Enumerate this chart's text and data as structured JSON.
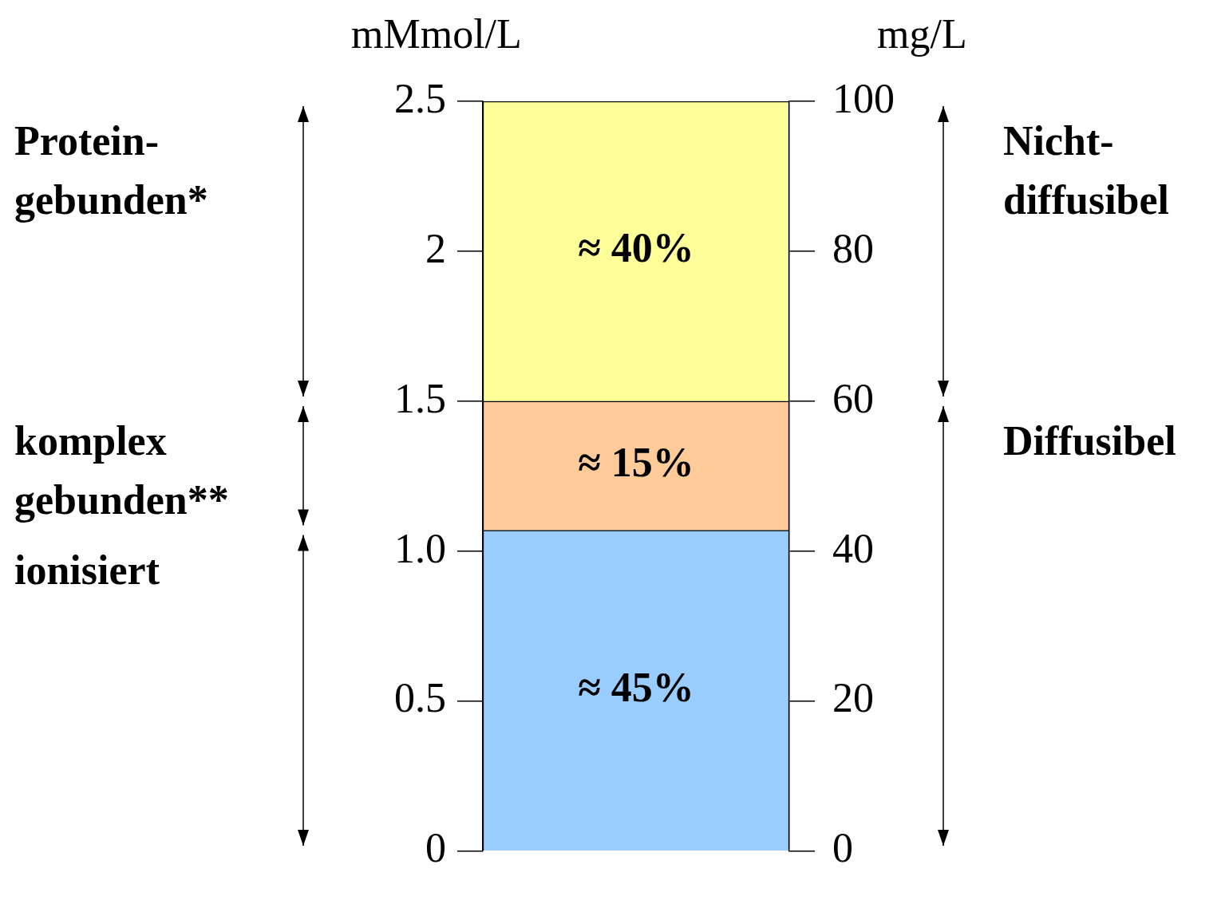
{
  "chart_data": {
    "type": "bar",
    "stacked": true,
    "ylabel": "mMmol/L",
    "y2label": "mg/L",
    "categories": [
      null
    ],
    "series": [
      {
        "color": "#99ccff",
        "values": [
          1.07
        ]
      },
      {
        "color": "#ffcc99",
        "values": [
          0.43
        ]
      },
      {
        "color": "#ffff99",
        "values": [
          1.0
        ]
      }
    ],
    "annotations": [
      "≈ 45%",
      "≈ 15%",
      "≈ 40%",
      "ionisiert",
      "komplex\ngebunden**",
      "Protein-\ngebunden*",
      "Diffusibel",
      "Nicht-\ndiffusibel"
    ],
    "ylim": [
      0,
      2.5
    ],
    "yticks": [
      0,
      0.5,
      {
        "value": 1,
        "label": "1.0"
      },
      1.5,
      2,
      2.5
    ],
    "y2lim": [
      0,
      100
    ],
    "y2ticks": [
      0,
      20,
      40,
      60,
      80,
      100
    ],
    "legend": false
  }
}
